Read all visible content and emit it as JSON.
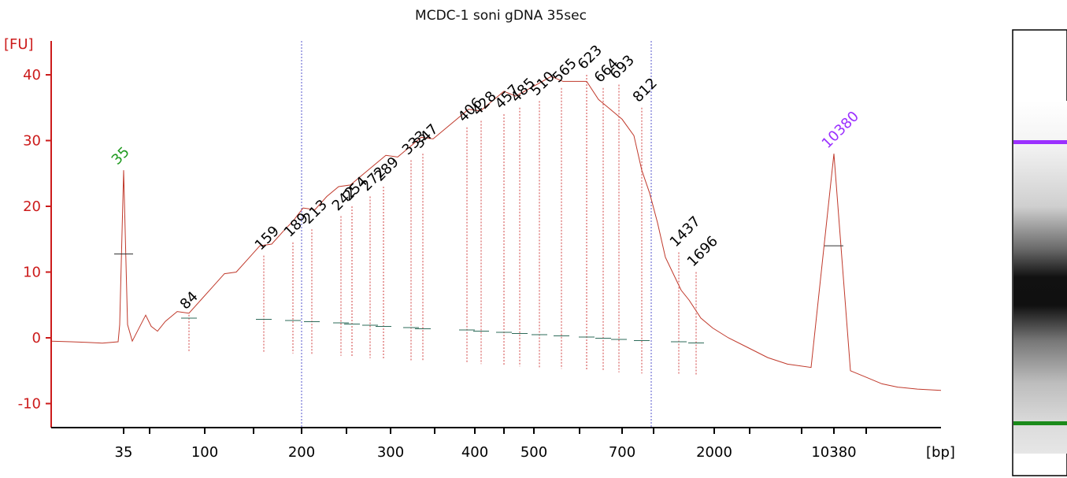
{
  "chart_data": {
    "type": "line",
    "title": "MCDC-1 soni gDNA 35sec",
    "ylabel": "[FU]",
    "xlabel": "[bp]",
    "ylim": [
      -13,
      45
    ],
    "yticks": [
      -10,
      0,
      10,
      20,
      30,
      40
    ],
    "yticks_labels": [
      "-10",
      "0",
      "10",
      "20",
      "30",
      "40"
    ],
    "xtick_labels": [
      {
        "label": "35",
        "color": "black"
      },
      {
        "label": "100",
        "color": "black"
      },
      {
        "label": "200",
        "color": "black"
      },
      {
        "label": "300",
        "color": "black"
      },
      {
        "label": "400",
        "color": "black"
      },
      {
        "label": "500",
        "color": "black"
      },
      {
        "label": "700",
        "color": "black"
      },
      {
        "label": "2000",
        "color": "black"
      },
      {
        "label": "10380",
        "color": "black"
      }
    ],
    "markers": [
      {
        "label": "35",
        "size_bp": 35,
        "fu": 25.5,
        "color": "#1f9a1f"
      },
      {
        "label": "10380",
        "size_bp": 10380,
        "fu": 28,
        "color": "#9b30ff"
      }
    ],
    "peaks": [
      {
        "label": "84",
        "size_bp": 84,
        "fu": 3.5
      },
      {
        "label": "159",
        "size_bp": 159,
        "fu": 12.5
      },
      {
        "label": "189",
        "size_bp": 189,
        "fu": 14.5
      },
      {
        "label": "213",
        "size_bp": 213,
        "fu": 16.5
      },
      {
        "label": "242",
        "size_bp": 242,
        "fu": 18.5
      },
      {
        "label": "254",
        "size_bp": 254,
        "fu": 20
      },
      {
        "label": "272",
        "size_bp": 272,
        "fu": 21.5
      },
      {
        "label": "289",
        "size_bp": 289,
        "fu": 23
      },
      {
        "label": "333",
        "size_bp": 333,
        "fu": 27
      },
      {
        "label": "347",
        "size_bp": 347,
        "fu": 28
      },
      {
        "label": "406",
        "size_bp": 406,
        "fu": 32
      },
      {
        "label": "428",
        "size_bp": 428,
        "fu": 33
      },
      {
        "label": "457",
        "size_bp": 457,
        "fu": 34
      },
      {
        "label": "485",
        "size_bp": 485,
        "fu": 35
      },
      {
        "label": "510",
        "size_bp": 510,
        "fu": 36
      },
      {
        "label": "565",
        "size_bp": 565,
        "fu": 38
      },
      {
        "label": "623",
        "size_bp": 623,
        "fu": 40
      },
      {
        "label": "664",
        "size_bp": 664,
        "fu": 38
      },
      {
        "label": "693",
        "size_bp": 693,
        "fu": 38.5
      },
      {
        "label": "812",
        "size_bp": 812,
        "fu": 35
      },
      {
        "label": "1437",
        "size_bp": 1437,
        "fu": 13
      },
      {
        "label": "1696",
        "size_bp": 1696,
        "fu": 10
      }
    ],
    "trace_fu": [
      -0.5,
      -0.6,
      -0.7,
      -0.8,
      -0.6,
      2,
      25.5,
      2,
      -0.5,
      3.2,
      1,
      1.5,
      2.5,
      3.5,
      4.5,
      6,
      7.5,
      9,
      10.5,
      12,
      13.5,
      15,
      16.5,
      17.5,
      19,
      20,
      21.5,
      22.5,
      24,
      25,
      26,
      27,
      28,
      29,
      30,
      31,
      32,
      33,
      34,
      35,
      36,
      37,
      37.5,
      38,
      38.5,
      39,
      39.5,
      39,
      38.5,
      37,
      35,
      33,
      30,
      26,
      22,
      17,
      13,
      10,
      7,
      5,
      3,
      1.5,
      0,
      -1.5,
      -3,
      -4,
      -4.5,
      28,
      -5,
      -6,
      -7,
      -7.5,
      -7.8,
      -8
    ],
    "legend": "none",
    "grid": false
  },
  "gel": {
    "upper_marker_color": "#9b30ff",
    "lower_marker_color": "#1a8a1a"
  }
}
